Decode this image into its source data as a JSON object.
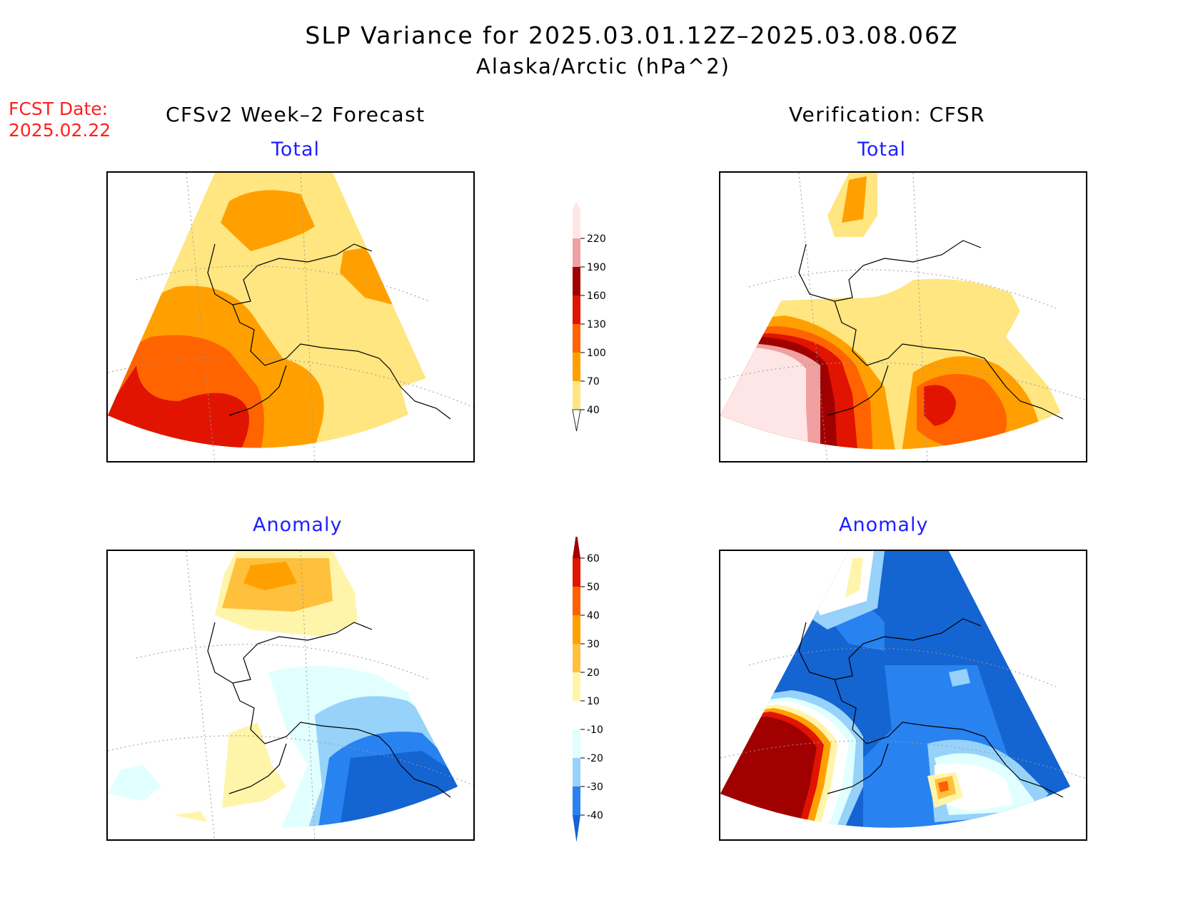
{
  "title": {
    "line1": "SLP Variance for 2025.03.01.12Z–2025.03.08.06Z",
    "line2": "Alaska/Arctic (hPa^2)"
  },
  "fcst": {
    "label": "FCST Date:",
    "date": "2025.02.22"
  },
  "columns": {
    "left": "CFSv2 Week–2 Forecast",
    "right": "Verification: CFSR"
  },
  "panels": {
    "top_left_title": "Total",
    "top_right_title": "Total",
    "bottom_left_title": "Anomaly",
    "bottom_right_title": "Anomaly"
  },
  "colorbar_total": {
    "levels": [
      "40",
      "70",
      "100",
      "130",
      "160",
      "190",
      "220"
    ],
    "colors": [
      "#ffe680",
      "#ffa000",
      "#ff6400",
      "#e01400",
      "#a00000",
      "#f0a0a0",
      "#ffe6e6"
    ]
  },
  "colorbar_anomaly": {
    "levels": [
      "-40",
      "-30",
      "-20",
      "-10",
      "10",
      "20",
      "30",
      "40",
      "50",
      "60"
    ],
    "colors": [
      "#1464d2",
      "#2882f0",
      "#96d2fa",
      "#e1ffff",
      "#ffffff",
      "#fff5aa",
      "#ffc03c",
      "#ffa000",
      "#ff6000",
      "#e01400",
      "#a00000"
    ]
  }
}
